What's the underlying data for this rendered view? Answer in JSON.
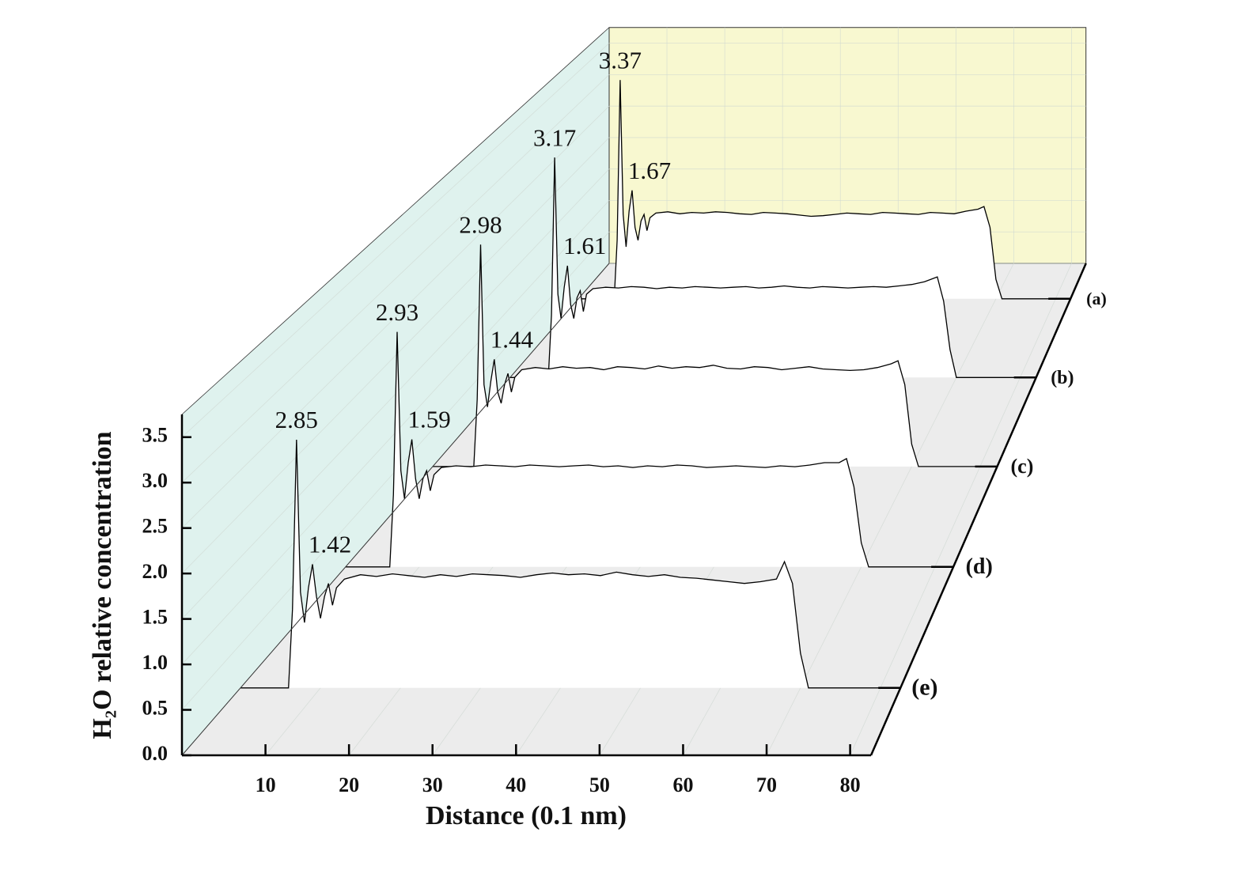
{
  "chart_data": {
    "type": "waterfall",
    "xlabel": "Distance (0.1 nm)",
    "ylabel": "H₂O relative concentration",
    "xlim": [
      0,
      82.5
    ],
    "ylim": [
      0,
      3.75
    ],
    "xticks": [
      10,
      20,
      30,
      40,
      50,
      60,
      70,
      80
    ],
    "yticks": [
      {
        "value": 0,
        "label": "0.0"
      },
      {
        "value": 0.5,
        "label": "0.5"
      },
      {
        "value": 1,
        "label": "1.0"
      },
      {
        "value": 1.5,
        "label": "1.5"
      },
      {
        "value": 2,
        "label": "2.0"
      },
      {
        "value": 2.5,
        "label": "2.5"
      },
      {
        "value": 3,
        "label": "3.0"
      },
      {
        "value": 3.5,
        "label": "3.5"
      }
    ],
    "grid": true,
    "x": [
      0,
      6,
      6.5,
      7,
      7.5,
      8,
      8.5,
      9,
      9.5,
      10,
      10.5,
      11,
      11.5,
      12,
      13,
      15,
      17,
      19,
      21,
      23,
      25,
      27,
      29,
      31,
      33,
      35,
      37,
      39,
      41,
      43,
      45,
      47,
      49,
      51,
      53,
      55,
      57,
      59,
      61,
      63,
      65,
      67,
      68,
      69,
      70,
      71,
      82
    ],
    "series": [
      {
        "name": "(a)",
        "color": "#000000",
        "values": [
          0,
          0,
          0.9,
          3.37,
          1.3,
          0.8,
          1.35,
          1.67,
          1.1,
          0.9,
          1.2,
          1.3,
          1.05,
          1.25,
          1.32,
          1.34,
          1.31,
          1.33,
          1.32,
          1.34,
          1.33,
          1.31,
          1.3,
          1.33,
          1.32,
          1.31,
          1.29,
          1.27,
          1.28,
          1.3,
          1.32,
          1.31,
          1.3,
          1.33,
          1.32,
          1.31,
          1.3,
          1.33,
          1.32,
          1.31,
          1.35,
          1.38,
          1.42,
          1.1,
          0.3,
          0,
          0
        ]
      },
      {
        "name": "(b)",
        "color": "#000000",
        "values": [
          0,
          0,
          0.9,
          3.17,
          1.2,
          0.85,
          1.3,
          1.61,
          1.05,
          0.85,
          1.15,
          1.25,
          0.95,
          1.2,
          1.28,
          1.3,
          1.29,
          1.31,
          1.3,
          1.28,
          1.3,
          1.29,
          1.31,
          1.3,
          1.29,
          1.3,
          1.31,
          1.29,
          1.3,
          1.32,
          1.3,
          1.29,
          1.31,
          1.3,
          1.29,
          1.3,
          1.31,
          1.3,
          1.32,
          1.34,
          1.38,
          1.45,
          1.1,
          0.4,
          0,
          0,
          0
        ]
      },
      {
        "name": "(c)",
        "color": "#000000",
        "values": [
          0,
          0,
          0.9,
          2.98,
          1.1,
          0.8,
          1.15,
          1.44,
          1.0,
          0.85,
          1.1,
          1.25,
          1.0,
          1.2,
          1.3,
          1.33,
          1.31,
          1.34,
          1.32,
          1.33,
          1.3,
          1.34,
          1.33,
          1.31,
          1.35,
          1.32,
          1.34,
          1.33,
          1.36,
          1.32,
          1.31,
          1.34,
          1.33,
          1.3,
          1.32,
          1.34,
          1.31,
          1.3,
          1.29,
          1.3,
          1.33,
          1.38,
          1.42,
          1.1,
          0.3,
          0,
          0
        ]
      },
      {
        "name": "(d)",
        "color": "#000000",
        "values": [
          0,
          0,
          0.9,
          2.93,
          1.2,
          0.85,
          1.3,
          1.59,
          1.1,
          0.85,
          1.1,
          1.2,
          0.95,
          1.15,
          1.24,
          1.26,
          1.25,
          1.27,
          1.26,
          1.25,
          1.27,
          1.26,
          1.25,
          1.26,
          1.27,
          1.25,
          1.26,
          1.24,
          1.26,
          1.25,
          1.27,
          1.26,
          1.24,
          1.25,
          1.26,
          1.25,
          1.24,
          1.26,
          1.25,
          1.27,
          1.3,
          1.3,
          1.35,
          1.0,
          0.3,
          0,
          0
        ]
      },
      {
        "name": "(e)",
        "color": "#000000",
        "values": [
          0,
          0,
          0.9,
          2.85,
          1.1,
          0.75,
          1.15,
          1.42,
          1.05,
          0.8,
          1.05,
          1.2,
          0.95,
          1.15,
          1.25,
          1.3,
          1.28,
          1.31,
          1.29,
          1.27,
          1.3,
          1.28,
          1.31,
          1.3,
          1.29,
          1.27,
          1.3,
          1.32,
          1.3,
          1.31,
          1.29,
          1.33,
          1.3,
          1.28,
          1.3,
          1.27,
          1.26,
          1.24,
          1.22,
          1.2,
          1.22,
          1.25,
          1.45,
          1.2,
          0.4,
          0,
          0
        ]
      }
    ]
  }
}
